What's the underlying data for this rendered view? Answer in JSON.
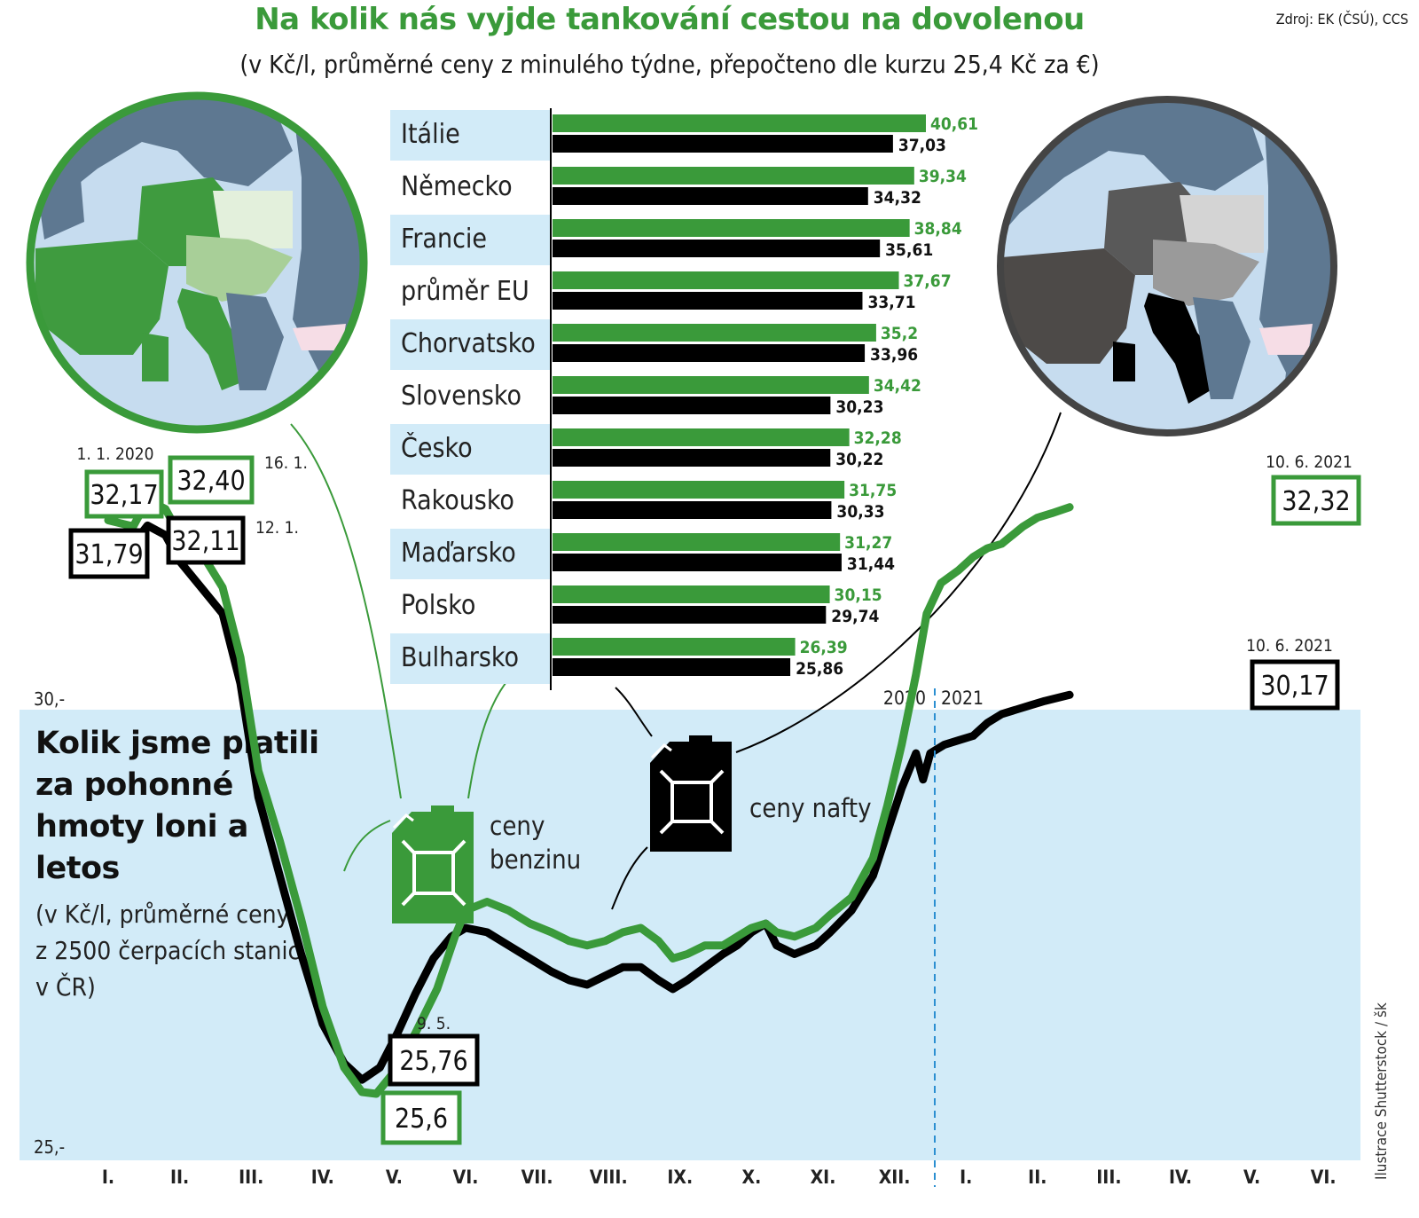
{
  "title": "Na kolik nás vyjde tankování cestou na dovolenou",
  "subtitle": "(v Kč/l, průměrné ceny z minulého týdne, přepočteno dle kurzu 25,4 Kč za €)",
  "source": "Zdroj: EK (ČSÚ), CCS",
  "credit": "Ilustrace Shutterstock / šk",
  "line_title": "Kolik jsme platili za pohonné hmoty loni a letos",
  "line_subtitle": "(v Kč/l, průměrné ceny z 2500 čerpacích stanic v ČR)",
  "legend": {
    "petrol": "ceny benzinu",
    "diesel": "ceny nafty"
  },
  "colors": {
    "petrol": "#3a9a3a",
    "diesel": "#000000",
    "band": "#d2ebf8",
    "row": "#d2ebf8"
  },
  "icons": {
    "petrol": "fuel-canister-icon",
    "diesel": "fuel-canister-icon"
  },
  "chart_data": [
    {
      "type": "bar",
      "categories": [
        "Itálie",
        "Německo",
        "Francie",
        "průměr EU",
        "Chorvatsko",
        "Slovensko",
        "Česko",
        "Rakousko",
        "Maďarsko",
        "Polsko",
        "Bulharsko"
      ],
      "series": [
        {
          "name": "",
          "color": "#3a9a3a",
          "values": [
            40.61,
            39.34,
            38.84,
            37.67,
            35.2,
            34.42,
            32.28,
            31.75,
            31.27,
            30.15,
            26.39
          ],
          "labels": [
            "40,61",
            "39,34",
            "38,84",
            "37,67",
            "35,2",
            "34,42",
            "32,28",
            "31,75",
            "31,27",
            "30,15",
            "26,39"
          ]
        },
        {
          "name": "",
          "color": "#000000",
          "values": [
            37.03,
            34.32,
            35.61,
            33.71,
            33.96,
            30.23,
            30.22,
            30.33,
            31.44,
            29.74,
            25.86
          ],
          "labels": [
            "37,03",
            "34,32",
            "35,61",
            "33,71",
            "33,96",
            "30,23",
            "30,22",
            "30,33",
            "31,44",
            "29,74",
            "25,86"
          ]
        }
      ],
      "orientation": "horizontal",
      "xlim": [
        0,
        40.61
      ]
    },
    {
      "type": "line",
      "x_tick_labels": [
        "I.",
        "II.",
        "III.",
        "IV.",
        "V.",
        "VI.",
        "VII.",
        "VIII.",
        "IX.",
        "X.",
        "XI.",
        "XII.",
        "I.",
        "II.",
        "III.",
        "IV.",
        "V.",
        "VI."
      ],
      "year_labels": [
        "2020",
        "2021"
      ],
      "y_tick_labels": [
        "30,-",
        "25,-"
      ],
      "y_ticks": [
        30,
        25
      ],
      "ylim": [
        24.7,
        33.1
      ],
      "series": [
        {
          "name": "ceny benzinu",
          "color": "#3a9a3a",
          "points": [
            [
              0,
              32.17
            ],
            [
              0.35,
              32.1
            ],
            [
              0.55,
              32.4
            ],
            [
              0.8,
              32.3
            ],
            [
              1.0,
              32.0
            ],
            [
              1.3,
              31.8
            ],
            [
              1.6,
              31.4
            ],
            [
              1.85,
              30.6
            ],
            [
              2.1,
              29.3
            ],
            [
              2.4,
              28.5
            ],
            [
              2.7,
              27.6
            ],
            [
              3.0,
              26.6
            ],
            [
              3.3,
              25.9
            ],
            [
              3.55,
              25.62
            ],
            [
              3.75,
              25.6
            ],
            [
              4.0,
              25.85
            ],
            [
              4.3,
              26.3
            ],
            [
              4.6,
              26.8
            ],
            [
              4.85,
              27.4
            ],
            [
              5.0,
              27.7
            ],
            [
              5.3,
              27.8
            ],
            [
              5.6,
              27.7
            ],
            [
              5.9,
              27.55
            ],
            [
              6.2,
              27.45
            ],
            [
              6.45,
              27.35
            ],
            [
              6.7,
              27.3
            ],
            [
              6.95,
              27.35
            ],
            [
              7.2,
              27.45
            ],
            [
              7.45,
              27.5
            ],
            [
              7.7,
              27.35
            ],
            [
              7.9,
              27.15
            ],
            [
              8.1,
              27.2
            ],
            [
              8.35,
              27.3
            ],
            [
              8.6,
              27.3
            ],
            [
              8.8,
              27.4
            ],
            [
              9.0,
              27.5
            ],
            [
              9.2,
              27.55
            ],
            [
              9.35,
              27.45
            ],
            [
              9.6,
              27.4
            ],
            [
              9.9,
              27.5
            ],
            [
              10.1,
              27.65
            ],
            [
              10.4,
              27.85
            ],
            [
              10.7,
              28.3
            ],
            [
              10.9,
              28.9
            ],
            [
              11.1,
              29.6
            ],
            [
              11.3,
              30.4
            ],
            [
              11.45,
              31.1
            ],
            [
              11.65,
              31.45
            ],
            [
              11.9,
              31.6
            ],
            [
              12.1,
              31.75
            ],
            [
              12.3,
              31.85
            ],
            [
              12.5,
              31.9
            ],
            [
              12.65,
              32.0
            ],
            [
              12.8,
              32.1
            ],
            [
              13.0,
              32.2
            ],
            [
              13.2,
              32.25
            ],
            [
              13.45,
              32.32
            ]
          ]
        },
        {
          "name": "ceny nafty",
          "color": "#000000",
          "points": [
            [
              0,
              31.79
            ],
            [
              0.35,
              31.9
            ],
            [
              0.55,
              32.11
            ],
            [
              0.8,
              32.0
            ],
            [
              1.0,
              31.7
            ],
            [
              1.3,
              31.4
            ],
            [
              1.6,
              31.1
            ],
            [
              1.85,
              30.3
            ],
            [
              2.1,
              29.0
            ],
            [
              2.4,
              28.1
            ],
            [
              2.7,
              27.2
            ],
            [
              3.0,
              26.4
            ],
            [
              3.3,
              25.95
            ],
            [
              3.55,
              25.76
            ],
            [
              3.8,
              25.9
            ],
            [
              4.05,
              26.3
            ],
            [
              4.3,
              26.75
            ],
            [
              4.55,
              27.15
            ],
            [
              4.8,
              27.4
            ],
            [
              5.0,
              27.5
            ],
            [
              5.3,
              27.45
            ],
            [
              5.6,
              27.3
            ],
            [
              5.9,
              27.15
            ],
            [
              6.2,
              27.0
            ],
            [
              6.45,
              26.9
            ],
            [
              6.7,
              26.85
            ],
            [
              6.95,
              26.95
            ],
            [
              7.2,
              27.05
            ],
            [
              7.45,
              27.05
            ],
            [
              7.7,
              26.9
            ],
            [
              7.9,
              26.8
            ],
            [
              8.1,
              26.9
            ],
            [
              8.35,
              27.05
            ],
            [
              8.6,
              27.2
            ],
            [
              8.8,
              27.3
            ],
            [
              9.0,
              27.45
            ],
            [
              9.2,
              27.55
            ],
            [
              9.35,
              27.3
            ],
            [
              9.6,
              27.2
            ],
            [
              9.9,
              27.3
            ],
            [
              10.1,
              27.45
            ],
            [
              10.4,
              27.7
            ],
            [
              10.7,
              28.1
            ],
            [
              10.9,
              28.6
            ],
            [
              11.1,
              29.1
            ],
            [
              11.3,
              29.5
            ],
            [
              11.4,
              29.2
            ],
            [
              11.5,
              29.5
            ],
            [
              11.7,
              29.6
            ],
            [
              11.9,
              29.65
            ],
            [
              12.1,
              29.7
            ],
            [
              12.3,
              29.85
            ],
            [
              12.5,
              29.95
            ],
            [
              12.7,
              30.0
            ],
            [
              12.9,
              30.05
            ],
            [
              13.1,
              30.1
            ],
            [
              13.45,
              30.17
            ]
          ]
        }
      ],
      "callouts": [
        {
          "value": "32,17",
          "date": "1. 1. 2020",
          "series": "ceny benzinu"
        },
        {
          "value": "32,40",
          "date": "16. 1.",
          "series": "ceny benzinu"
        },
        {
          "value": "31,79",
          "series": "ceny nafty"
        },
        {
          "value": "32,11",
          "date": "12. 1.",
          "series": "ceny nafty"
        },
        {
          "value": "25,76",
          "date": "9. 5.",
          "series": "ceny nafty"
        },
        {
          "value": "25,6",
          "series": "ceny benzinu"
        },
        {
          "value": "32,32",
          "date": "10. 6. 2021",
          "series": "ceny benzinu"
        },
        {
          "value": "30,17",
          "date": "10. 6. 2021",
          "series": "ceny nafty"
        }
      ]
    }
  ]
}
